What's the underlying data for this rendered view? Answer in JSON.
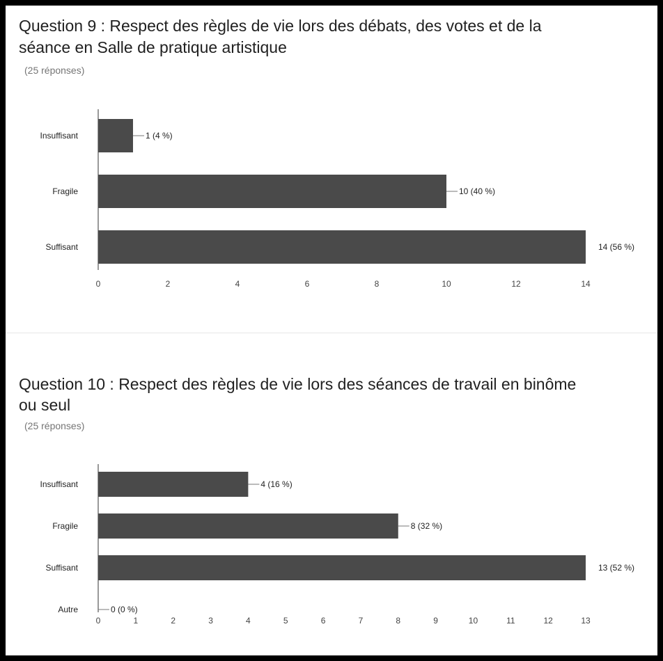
{
  "charts": [
    {
      "title_line1": "Question 9 : Respect des règles de vie lors des débats, des votes et de la",
      "title_line2": "séance en Salle de pratique artistique",
      "subtitle": "(25 réponses)",
      "chart_data": {
        "type": "bar",
        "orientation": "horizontal",
        "categories": [
          "Insuffisant",
          "Fragile",
          "Suffisant"
        ],
        "values": [
          1,
          10,
          14
        ],
        "data_labels": [
          "1 (4 %)",
          "10 (40 %)",
          "14 (56 %)"
        ],
        "xticks": [
          0,
          2,
          4,
          6,
          8,
          10,
          12,
          14
        ],
        "xlim": [
          0,
          14
        ],
        "bar_color": "#4a4a4a",
        "grid": false
      }
    },
    {
      "title_line1": "Question 10 : Respect des règles de vie lors des séances de travail en binôme",
      "title_line2": "ou seul",
      "subtitle": "(25 réponses)",
      "chart_data": {
        "type": "bar",
        "orientation": "horizontal",
        "categories": [
          "Insuffisant",
          "Fragile",
          "Suffisant",
          "Autre"
        ],
        "values": [
          4,
          8,
          13,
          0
        ],
        "data_labels": [
          "4 (16 %)",
          "8 (32 %)",
          "13 (52 %)",
          "0 (0 %)"
        ],
        "xticks": [
          0,
          1,
          2,
          3,
          4,
          5,
          6,
          7,
          8,
          9,
          10,
          11,
          12,
          13
        ],
        "xlim": [
          0,
          13
        ],
        "bar_color": "#4a4a4a",
        "grid": false
      }
    }
  ]
}
